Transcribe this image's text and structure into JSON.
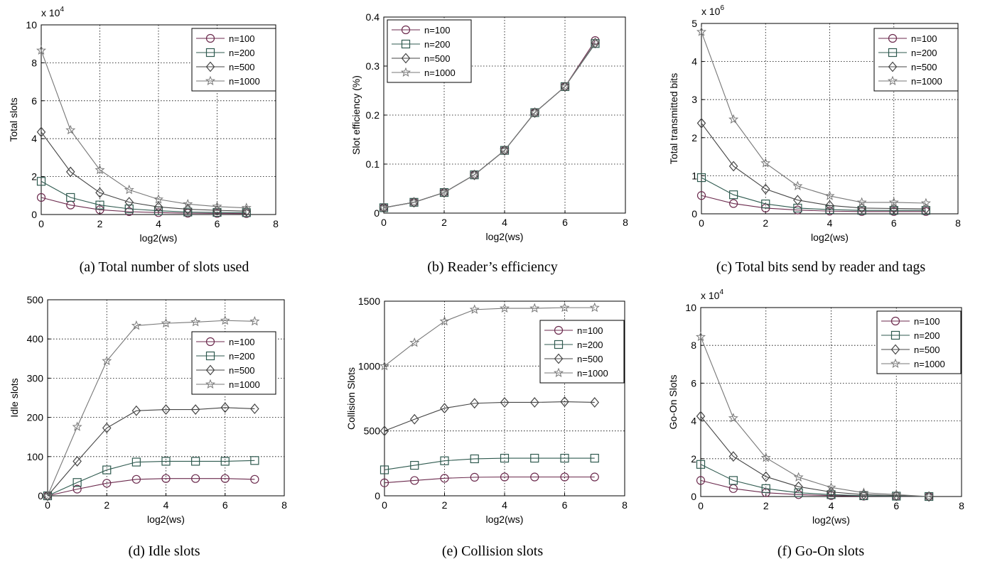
{
  "colors": {
    "n100": "#6b2a4d",
    "n200": "#2f5a4f",
    "n500": "#444444",
    "n1000": "#777777",
    "grid": "#000000"
  },
  "captions": {
    "a": "(a)  Total number of slots used",
    "b": "(b)  Reader’s efficiency",
    "c": "(c)  Total bits send by reader and tags",
    "d": "(d)  Idle slots",
    "e": "(e)  Collision slots",
    "f": "(f)  Go-On slots"
  },
  "chart_data": [
    {
      "type": "line",
      "id": "a",
      "xlabel": "log2(ws)",
      "ylabel": "Total slots",
      "multiplier": "x 10^4",
      "xlim": [
        0,
        8
      ],
      "ylim": [
        0,
        10
      ],
      "xticks": [
        0,
        2,
        4,
        6,
        8
      ],
      "yticks": [
        0,
        2,
        4,
        6,
        8,
        10
      ],
      "grid": true,
      "legend": "top-right",
      "x": [
        0,
        1,
        2,
        3,
        4,
        5,
        6,
        7
      ],
      "series": [
        {
          "name": "n=100",
          "marker": "circle",
          "values": [
            0.9,
            0.5,
            0.25,
            0.15,
            0.1,
            0.07,
            0.06,
            0.05
          ]
        },
        {
          "name": "n=200",
          "marker": "square",
          "values": [
            1.75,
            0.9,
            0.5,
            0.3,
            0.2,
            0.13,
            0.11,
            0.1
          ]
        },
        {
          "name": "n=500",
          "marker": "diamond",
          "values": [
            4.35,
            2.25,
            1.15,
            0.65,
            0.4,
            0.28,
            0.22,
            0.18
          ]
        },
        {
          "name": "n=1000",
          "marker": "star",
          "values": [
            8.65,
            4.45,
            2.35,
            1.3,
            0.8,
            0.55,
            0.42,
            0.35
          ]
        }
      ]
    },
    {
      "type": "line",
      "id": "b",
      "xlabel": "log2(ws)",
      "ylabel": "Slot efficiency (%)",
      "multiplier": "",
      "xlim": [
        0,
        8
      ],
      "ylim": [
        0,
        0.4
      ],
      "xticks": [
        0,
        2,
        4,
        6,
        8
      ],
      "yticks": [
        0,
        0.1,
        0.2,
        0.3,
        0.4
      ],
      "grid": true,
      "legend": "top-left",
      "x": [
        0,
        1,
        2,
        3,
        4,
        5,
        6,
        7
      ],
      "series": [
        {
          "name": "n=100",
          "marker": "circle",
          "values": [
            0.011,
            0.022,
            0.042,
            0.078,
            0.128,
            0.205,
            0.258,
            0.352
          ]
        },
        {
          "name": "n=200",
          "marker": "square",
          "values": [
            0.011,
            0.022,
            0.042,
            0.078,
            0.128,
            0.205,
            0.258,
            0.346
          ]
        },
        {
          "name": "n=500",
          "marker": "diamond",
          "values": [
            0.011,
            0.022,
            0.042,
            0.078,
            0.128,
            0.205,
            0.258,
            0.347
          ]
        },
        {
          "name": "n=1000",
          "marker": "star",
          "values": [
            0.011,
            0.022,
            0.042,
            0.078,
            0.128,
            0.205,
            0.258,
            0.348
          ]
        }
      ]
    },
    {
      "type": "line",
      "id": "c",
      "xlabel": "log2(ws)",
      "ylabel": "Total transmitted bits",
      "multiplier": "x 10^6",
      "xlim": [
        0,
        8
      ],
      "ylim": [
        0,
        5
      ],
      "xticks": [
        0,
        2,
        4,
        6,
        8
      ],
      "yticks": [
        0,
        1,
        2,
        3,
        4,
        5
      ],
      "grid": true,
      "legend": "top-right",
      "x": [
        0,
        1,
        2,
        3,
        4,
        5,
        6,
        7
      ],
      "series": [
        {
          "name": "n=100",
          "marker": "circle",
          "values": [
            0.48,
            0.27,
            0.15,
            0.1,
            0.07,
            0.06,
            0.06,
            0.06
          ]
        },
        {
          "name": "n=200",
          "marker": "square",
          "values": [
            0.95,
            0.5,
            0.26,
            0.15,
            0.11,
            0.09,
            0.09,
            0.09
          ]
        },
        {
          "name": "n=500",
          "marker": "diamond",
          "values": [
            2.38,
            1.25,
            0.65,
            0.36,
            0.22,
            0.15,
            0.14,
            0.13
          ]
        },
        {
          "name": "n=1000",
          "marker": "star",
          "values": [
            4.78,
            2.48,
            1.33,
            0.73,
            0.47,
            0.3,
            0.3,
            0.28
          ]
        }
      ]
    },
    {
      "type": "line",
      "id": "d",
      "xlabel": "log2(ws)",
      "ylabel": "Idle slots",
      "multiplier": "",
      "xlim": [
        0,
        8
      ],
      "ylim": [
        0,
        500
      ],
      "xticks": [
        0,
        2,
        4,
        6,
        8
      ],
      "yticks": [
        0,
        100,
        200,
        300,
        400,
        500
      ],
      "grid": true,
      "legend": "right",
      "x": [
        0,
        1,
        2,
        3,
        4,
        5,
        6,
        7
      ],
      "series": [
        {
          "name": "n=100",
          "marker": "circle",
          "values": [
            0,
            17,
            32,
            42,
            44,
            44,
            44,
            42
          ]
        },
        {
          "name": "n=200",
          "marker": "square",
          "values": [
            0,
            34,
            66,
            86,
            88,
            88,
            88,
            90
          ]
        },
        {
          "name": "n=500",
          "marker": "diamond",
          "values": [
            0,
            88,
            173,
            217,
            220,
            220,
            225,
            222
          ]
        },
        {
          "name": "n=1000",
          "marker": "star",
          "values": [
            0,
            176,
            344,
            434,
            440,
            443,
            447,
            445
          ]
        }
      ]
    },
    {
      "type": "line",
      "id": "e",
      "xlabel": "log2(ws)",
      "ylabel": "Collision Slots",
      "multiplier": "",
      "xlim": [
        0,
        8
      ],
      "ylim": [
        0,
        1500
      ],
      "xticks": [
        0,
        2,
        4,
        6,
        8
      ],
      "yticks": [
        0,
        500,
        1000,
        1500
      ],
      "grid": true,
      "legend": "right",
      "x": [
        0,
        1,
        2,
        3,
        4,
        5,
        6,
        7
      ],
      "series": [
        {
          "name": "n=100",
          "marker": "circle",
          "values": [
            100,
            118,
            135,
            143,
            145,
            145,
            145,
            145
          ]
        },
        {
          "name": "n=200",
          "marker": "square",
          "values": [
            200,
            235,
            270,
            285,
            290,
            290,
            290,
            290
          ]
        },
        {
          "name": "n=500",
          "marker": "diamond",
          "values": [
            500,
            590,
            675,
            713,
            720,
            720,
            725,
            720
          ]
        },
        {
          "name": "n=1000",
          "marker": "star",
          "values": [
            1000,
            1180,
            1345,
            1435,
            1445,
            1445,
            1450,
            1450
          ]
        }
      ]
    },
    {
      "type": "line",
      "id": "f",
      "xlabel": "log2(ws)",
      "ylabel": "Go-On Slots",
      "multiplier": "x 10^4",
      "xlim": [
        0,
        8
      ],
      "ylim": [
        0,
        10
      ],
      "xticks": [
        0,
        2,
        4,
        6,
        8
      ],
      "yticks": [
        0,
        2,
        4,
        6,
        8,
        10
      ],
      "grid": true,
      "legend": "top-right",
      "x": [
        0,
        1,
        2,
        3,
        4,
        5,
        6,
        7
      ],
      "series": [
        {
          "name": "n=100",
          "marker": "circle",
          "values": [
            0.85,
            0.42,
            0.2,
            0.1,
            0.05,
            0.02,
            0.01,
            0
          ]
        },
        {
          "name": "n=200",
          "marker": "square",
          "values": [
            1.7,
            0.85,
            0.42,
            0.2,
            0.1,
            0.04,
            0.02,
            0
          ]
        },
        {
          "name": "n=500",
          "marker": "diamond",
          "values": [
            4.25,
            2.12,
            1.05,
            0.52,
            0.24,
            0.1,
            0.05,
            0
          ]
        },
        {
          "name": "n=1000",
          "marker": "star",
          "values": [
            8.45,
            4.15,
            2.05,
            1.02,
            0.48,
            0.2,
            0.1,
            0
          ]
        }
      ]
    }
  ]
}
